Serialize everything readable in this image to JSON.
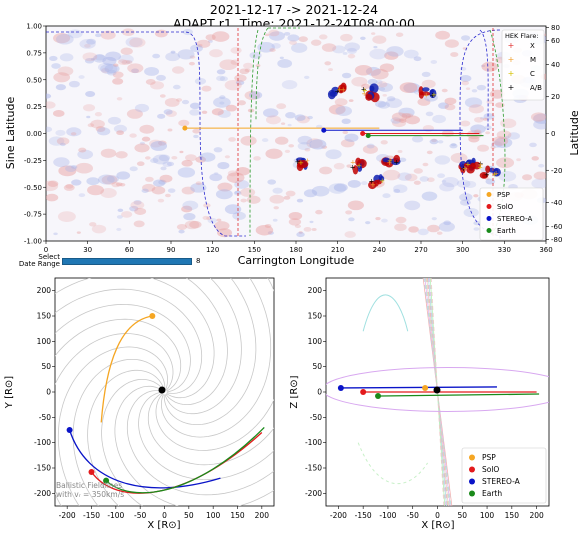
{
  "header": {
    "date_range": "2021-12-17 -> 2021-12-24",
    "subtitle": "ADAPT r1, Time: 2021-12-24T08:00:00"
  },
  "top_plot": {
    "xlabel": "Carrington Longitude",
    "ylabel_left": "Sine Latitude",
    "ylabel_right": "Latitude",
    "x_ticks": [
      "0",
      "30",
      "60",
      "90",
      "120",
      "150",
      "180",
      "210",
      "240",
      "270",
      "300",
      "330",
      "360"
    ],
    "y_ticks": [
      "-1.00",
      "-0.75",
      "-0.50",
      "-0.25",
      "0.00",
      "0.25",
      "0.50",
      "0.75",
      "1.00"
    ],
    "right_ticks": [
      "-80",
      "-60",
      "-40",
      "-20",
      "0",
      "20",
      "40",
      "60",
      "80"
    ],
    "hek_legend": {
      "title": "HEK Flare:",
      "items": [
        {
          "label": "X",
          "color": "#e03030",
          "symbol": "+"
        },
        {
          "label": "M",
          "color": "#f0a030",
          "symbol": "+"
        },
        {
          "label": "C",
          "color": "#d4c000",
          "symbol": "+"
        },
        {
          "label": "A/B",
          "color": "#000000",
          "symbol": "+"
        }
      ]
    },
    "spacecraft_legend": [
      {
        "label": "PSP",
        "color": "#f5a623"
      },
      {
        "label": "SolO",
        "color": "#e31a1c"
      },
      {
        "label": "STEREO-A",
        "color": "#0a14c8"
      },
      {
        "label": "Earth",
        "color": "#1a8a1a"
      }
    ]
  },
  "slider": {
    "label": "Select\nDate Range",
    "value": "8"
  },
  "xy_plot": {
    "xlabel": "X [R⊙]",
    "ylabel": "Y [R⊙]",
    "ticks": [
      "-200",
      "-150",
      "-100",
      "-50",
      "0",
      "50",
      "100",
      "150",
      "200"
    ],
    "annotation_line1": "Ballistic Fieldlines",
    "annotation_line2": "with vᵣ = 350km/s"
  },
  "xz_plot": {
    "xlabel": "X [R⊙]",
    "ylabel": "Z [R⊙]",
    "ticks": [
      "-200",
      "-150",
      "-100",
      "-50",
      "0",
      "50",
      "100",
      "150",
      "200"
    ],
    "legend": [
      {
        "label": "PSP",
        "color": "#f5a623"
      },
      {
        "label": "SolO",
        "color": "#e31a1c"
      },
      {
        "label": "STEREO-A",
        "color": "#0a14c8"
      },
      {
        "label": "Earth",
        "color": "#1a8a1a"
      }
    ]
  },
  "chart_data": [
    {
      "type": "scatter",
      "title": "",
      "xlabel": "Carrington Longitude",
      "ylabel": "Sine Latitude",
      "xlim": [
        0,
        360
      ],
      "ylim": [
        -1,
        1
      ],
      "series": [
        {
          "name": "PSP",
          "x": [
            100
          ],
          "y": [
            0.05
          ],
          "line_to_x": 240
        },
        {
          "name": "SolO",
          "x": [
            228
          ],
          "y": [
            0.0
          ],
          "line_to_x": 312
        },
        {
          "name": "STEREO-A",
          "x": [
            200
          ],
          "y": [
            0.03
          ],
          "line_to_x": 300
        },
        {
          "name": "Earth",
          "x": [
            232
          ],
          "y": [
            -0.02
          ],
          "line_to_x": 315
        }
      ]
    },
    {
      "type": "line",
      "xlabel": "X [R⊙]",
      "ylabel": "Y [R⊙]",
      "xlim": [
        -225,
        225
      ],
      "ylim": [
        -225,
        225
      ],
      "points": [
        {
          "name": "PSP",
          "x": -25,
          "y": 150
        },
        {
          "name": "SolO",
          "x": -150,
          "y": -158
        },
        {
          "name": "STEREO-A",
          "x": -195,
          "y": -75
        },
        {
          "name": "Earth",
          "x": -120,
          "y": -175
        }
      ]
    },
    {
      "type": "line",
      "xlabel": "X [R⊙]",
      "ylabel": "Z [R⊙]",
      "xlim": [
        -225,
        225
      ],
      "ylim": [
        -225,
        225
      ],
      "points": [
        {
          "name": "PSP",
          "x": -25,
          "y": 8
        },
        {
          "name": "SolO",
          "x": -150,
          "y": 0
        },
        {
          "name": "STEREO-A",
          "x": -195,
          "y": 8
        },
        {
          "name": "Earth",
          "x": -120,
          "y": -8
        }
      ]
    }
  ]
}
